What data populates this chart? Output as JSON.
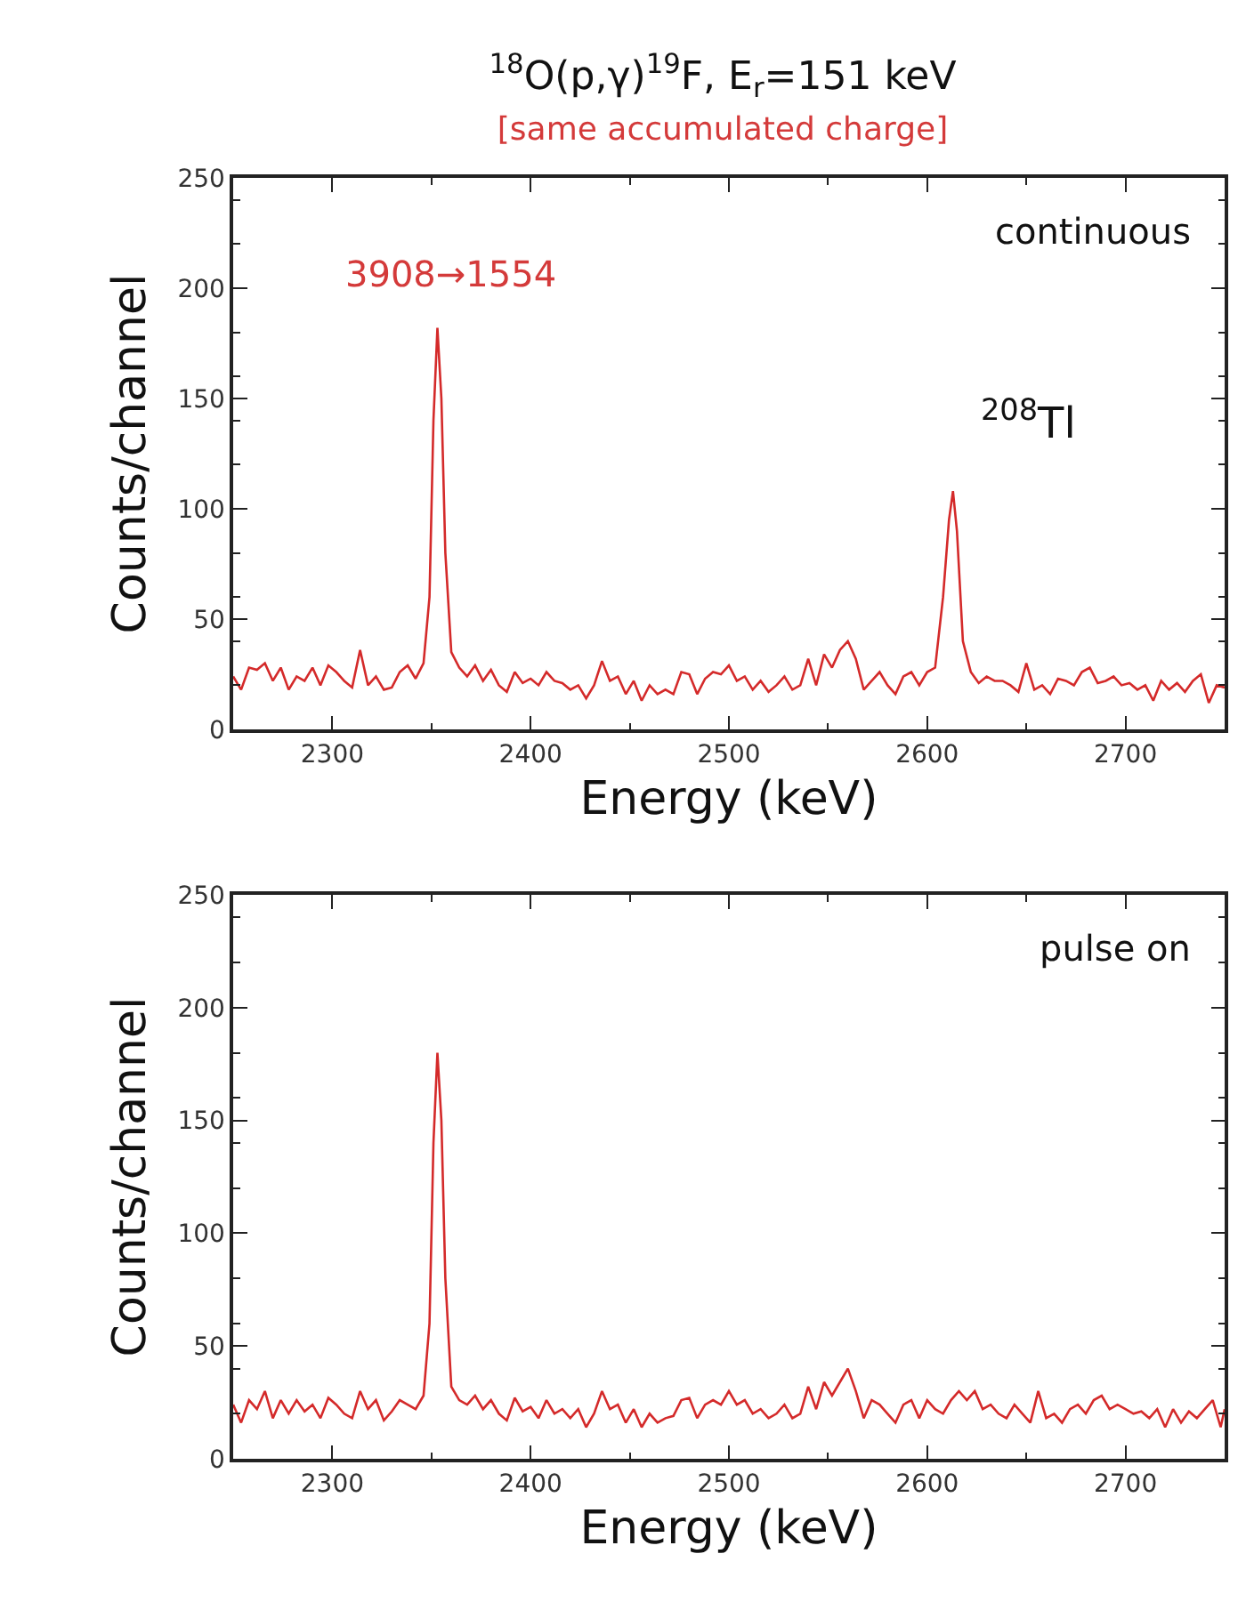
{
  "chart_data": [
    {
      "type": "line",
      "title": "$^{18}$O(p,γ)$^{19}$F, E$_{r}$=151 keV",
      "subtitle": "[same accumulated charge]",
      "xlabel": "Energy (keV)",
      "ylabel": "Counts/channel",
      "annotations": [
        "3908→1554",
        "$^{208}$Tl",
        "continuous"
      ],
      "x": [
        2250,
        2254,
        2258,
        2262,
        2266,
        2270,
        2274,
        2278,
        2282,
        2286,
        2290,
        2294,
        2298,
        2302,
        2306,
        2310,
        2314,
        2318,
        2322,
        2326,
        2330,
        2334,
        2338,
        2342,
        2346,
        2349,
        2351,
        2353,
        2355,
        2357,
        2360,
        2364,
        2368,
        2372,
        2376,
        2380,
        2384,
        2388,
        2392,
        2396,
        2400,
        2404,
        2408,
        2412,
        2416,
        2420,
        2424,
        2428,
        2432,
        2436,
        2440,
        2444,
        2448,
        2452,
        2456,
        2460,
        2464,
        2468,
        2472,
        2476,
        2480,
        2484,
        2488,
        2492,
        2496,
        2500,
        2504,
        2508,
        2512,
        2516,
        2520,
        2524,
        2528,
        2532,
        2536,
        2540,
        2544,
        2548,
        2552,
        2556,
        2560,
        2564,
        2568,
        2572,
        2576,
        2580,
        2584,
        2588,
        2592,
        2596,
        2600,
        2604,
        2608,
        2611,
        2613,
        2615,
        2618,
        2622,
        2626,
        2630,
        2634,
        2638,
        2642,
        2646,
        2650,
        2654,
        2658,
        2662,
        2666,
        2670,
        2674,
        2678,
        2682,
        2686,
        2690,
        2694,
        2698,
        2702,
        2706,
        2710,
        2714,
        2718,
        2722,
        2726,
        2730,
        2734,
        2738,
        2742,
        2746,
        2750
      ],
      "series": [
        {
          "color": "#d42a2a",
          "values": [
            24,
            18,
            28,
            27,
            30,
            22,
            28,
            18,
            24,
            22,
            28,
            20,
            29,
            26,
            22,
            19,
            36,
            20,
            24,
            18,
            19,
            26,
            29,
            23,
            30,
            60,
            140,
            182,
            150,
            80,
            35,
            28,
            24,
            29,
            22,
            27,
            20,
            17,
            26,
            21,
            23,
            20,
            26,
            22,
            21,
            18,
            20,
            14,
            20,
            31,
            22,
            24,
            16,
            22,
            13,
            20,
            16,
            18,
            16,
            26,
            25,
            16,
            23,
            26,
            25,
            29,
            22,
            24,
            18,
            22,
            17,
            20,
            24,
            18,
            20,
            32,
            20,
            34,
            28,
            36,
            40,
            32,
            18,
            22,
            26,
            20,
            16,
            24,
            26,
            20,
            26,
            28,
            60,
            95,
            108,
            90,
            40,
            26,
            21,
            24,
            22,
            22,
            20,
            17,
            30,
            18,
            20,
            16,
            23,
            22,
            20,
            26,
            28,
            21,
            22,
            24,
            20,
            21,
            18,
            20,
            13,
            22,
            18,
            21,
            17,
            22,
            25,
            12,
            20,
            19
          ]
        }
      ],
      "xlim": [
        2250,
        2750
      ],
      "xticks": [
        2300,
        2400,
        2500,
        2600,
        2700
      ],
      "ylim": [
        0,
        250
      ],
      "yticks": [
        0,
        50,
        100,
        150,
        200,
        250
      ],
      "grid": false,
      "marker": "none",
      "line_style": "solid"
    },
    {
      "type": "line",
      "xlabel": "Energy (keV)",
      "ylabel": "Counts/channel",
      "annotations": [
        "pulse on"
      ],
      "x": [
        2250,
        2254,
        2258,
        2262,
        2266,
        2270,
        2274,
        2278,
        2282,
        2286,
        2290,
        2294,
        2298,
        2302,
        2306,
        2310,
        2314,
        2318,
        2322,
        2326,
        2330,
        2334,
        2338,
        2342,
        2346,
        2349,
        2351,
        2353,
        2355,
        2357,
        2360,
        2364,
        2368,
        2372,
        2376,
        2380,
        2384,
        2388,
        2392,
        2396,
        2400,
        2404,
        2408,
        2412,
        2416,
        2420,
        2424,
        2428,
        2432,
        2436,
        2440,
        2444,
        2448,
        2452,
        2456,
        2460,
        2464,
        2468,
        2472,
        2476,
        2480,
        2484,
        2488,
        2492,
        2496,
        2500,
        2504,
        2508,
        2512,
        2516,
        2520,
        2524,
        2528,
        2532,
        2536,
        2540,
        2544,
        2548,
        2552,
        2556,
        2560,
        2564,
        2568,
        2572,
        2576,
        2580,
        2584,
        2588,
        2592,
        2596,
        2600,
        2604,
        2608,
        2612,
        2616,
        2620,
        2624,
        2628,
        2632,
        2636,
        2640,
        2644,
        2648,
        2652,
        2656,
        2660,
        2664,
        2668,
        2672,
        2676,
        2680,
        2684,
        2688,
        2692,
        2696,
        2700,
        2704,
        2708,
        2712,
        2716,
        2720,
        2724,
        2728,
        2732,
        2736,
        2740,
        2744,
        2748,
        2750
      ],
      "series": [
        {
          "color": "#d42a2a",
          "values": [
            24,
            16,
            26,
            22,
            30,
            18,
            26,
            20,
            26,
            21,
            24,
            18,
            27,
            24,
            20,
            18,
            30,
            22,
            26,
            17,
            21,
            26,
            24,
            22,
            28,
            60,
            140,
            180,
            150,
            80,
            32,
            26,
            24,
            28,
            22,
            26,
            20,
            17,
            27,
            21,
            23,
            18,
            26,
            20,
            22,
            18,
            22,
            14,
            20,
            30,
            22,
            24,
            16,
            22,
            14,
            20,
            16,
            18,
            19,
            26,
            27,
            18,
            24,
            26,
            24,
            30,
            24,
            26,
            20,
            22,
            18,
            20,
            24,
            18,
            20,
            32,
            22,
            34,
            28,
            34,
            40,
            30,
            18,
            26,
            24,
            20,
            16,
            24,
            26,
            18,
            26,
            22,
            20,
            26,
            30,
            26,
            30,
            22,
            24,
            20,
            18,
            24,
            20,
            16,
            30,
            18,
            20,
            16,
            22,
            24,
            20,
            26,
            28,
            22,
            24,
            22,
            20,
            21,
            18,
            22,
            14,
            22,
            16,
            21,
            18,
            22,
            26,
            14,
            22
          ]
        }
      ],
      "xlim": [
        2250,
        2750
      ],
      "xticks": [
        2300,
        2400,
        2500,
        2600,
        2700
      ],
      "ylim": [
        0,
        250
      ],
      "yticks": [
        0,
        50,
        100,
        150,
        200,
        250
      ],
      "grid": false,
      "marker": "none",
      "line_style": "solid"
    }
  ]
}
